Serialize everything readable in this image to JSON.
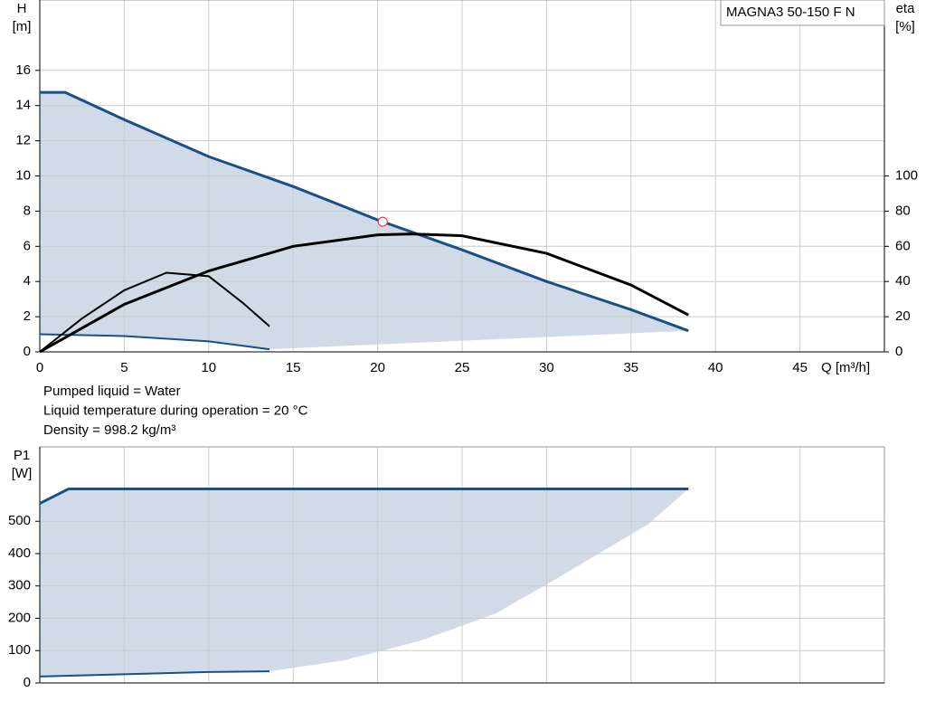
{
  "chart_data": [
    {
      "type": "line",
      "model": "MAGNA3 50-150 F N",
      "y_label": [
        "H",
        "[m]"
      ],
      "y2_label": [
        "eta",
        "[%]"
      ],
      "x_label": "Q [m³/h]",
      "xlim": [
        0,
        50
      ],
      "xticks": [
        0,
        5,
        10,
        15,
        20,
        25,
        30,
        35,
        40,
        45
      ],
      "ylim": [
        0,
        20
      ],
      "yticks": [
        0,
        2,
        4,
        6,
        8,
        10,
        12,
        14,
        16
      ],
      "y2lim": [
        0,
        200
      ],
      "y2ticks": [
        0,
        20,
        40,
        60,
        80,
        100
      ],
      "grid": true,
      "fill_color": "#d0dbe7",
      "series": [
        {
          "color": "#1a4f8a",
          "width": 3,
          "x": [
            0,
            1.5,
            5,
            10,
            15,
            20,
            25,
            30,
            35,
            38.4
          ],
          "values": [
            14.75,
            14.75,
            13.2,
            11.1,
            9.4,
            7.5,
            5.8,
            4.0,
            2.4,
            1.2
          ]
        },
        {
          "color": "#1a4f8a",
          "width": 2,
          "x": [
            0,
            5,
            10,
            13.6
          ],
          "values": [
            1.0,
            0.9,
            0.6,
            0.15
          ]
        },
        {
          "color": "#000000",
          "width": 3,
          "axis": "y2",
          "x": [
            0,
            5,
            10,
            15,
            20,
            22,
            25,
            30,
            35,
            38.4
          ],
          "values": [
            0,
            27,
            46,
            60,
            66.5,
            67,
            66,
            56,
            38,
            21
          ]
        },
        {
          "color": "#000000",
          "width": 2,
          "axis": "y2",
          "x": [
            0,
            2.5,
            5,
            7.5,
            10,
            12,
            13.6
          ],
          "values": [
            0,
            19,
            35,
            45,
            43,
            28,
            14.5
          ]
        }
      ],
      "area": {
        "x": [
          13.6,
          38.4
        ],
        "values": [
          0.15,
          1.2
        ]
      },
      "points": [
        {
          "x": 20.3,
          "y": 7.4,
          "color": "#e03030"
        }
      ],
      "notes": [
        "Pumped liquid = Water",
        "Liquid temperature during operation = 20 °C",
        "Density = 998.2 kg/m³"
      ]
    },
    {
      "type": "line",
      "y_label": [
        "P1",
        "[W]"
      ],
      "xlim": [
        0,
        50
      ],
      "xticks": [
        0,
        5,
        10,
        15,
        20,
        25,
        30,
        35,
        40,
        45
      ],
      "ylim": [
        0,
        730
      ],
      "yticks": [
        0,
        100,
        200,
        300,
        400,
        500
      ],
      "grid": true,
      "fill_color": "#d0dbe7",
      "series": [
        {
          "color": "#1a4f8a",
          "width": 3,
          "x": [
            0,
            1.7,
            38.4
          ],
          "values": [
            555,
            600,
            600
          ]
        },
        {
          "color": "#1a4f8a",
          "width": 2,
          "x": [
            0,
            5,
            10,
            13.6
          ],
          "values": [
            20,
            27,
            34,
            36
          ]
        }
      ],
      "area": {
        "x": [
          13.6,
          18,
          22.5,
          27,
          31,
          36,
          38.4
        ],
        "values": [
          36,
          70,
          130,
          215,
          335,
          490,
          600
        ]
      }
    }
  ]
}
